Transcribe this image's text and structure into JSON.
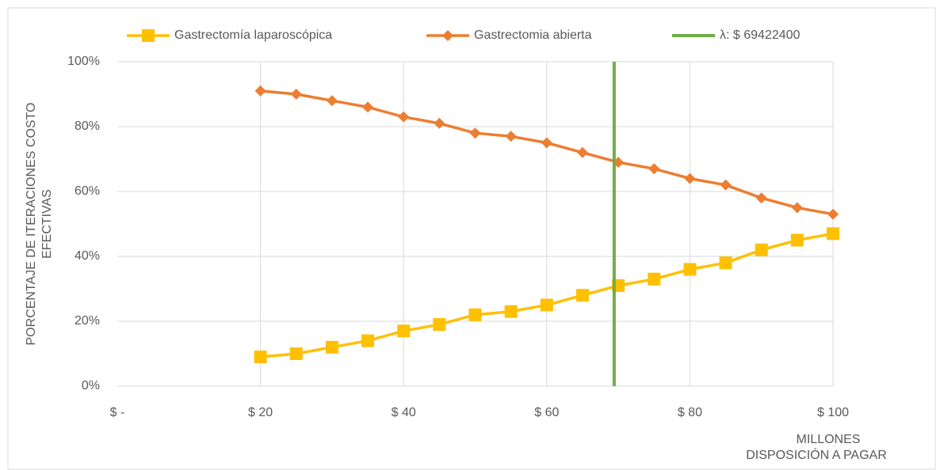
{
  "chart_data": {
    "type": "line",
    "x_label": "DISPOSICIÓN A PAGAR",
    "x_units": "MILLONES",
    "y_label": "PORCENTAJE DE ITERACIONES COSTO EFECTIVAS",
    "x": [
      20,
      25,
      30,
      35,
      40,
      45,
      50,
      55,
      60,
      65,
      70,
      75,
      80,
      85,
      90,
      95,
      100
    ],
    "series": [
      {
        "name": "Gastrectomía laparoscópica",
        "color": "#FFC000",
        "marker": "square",
        "values": [
          9,
          10,
          12,
          14,
          17,
          19,
          22,
          23,
          25,
          28,
          31,
          33,
          36,
          38,
          42,
          45,
          47
        ]
      },
      {
        "name": "Gastrectomia abierta",
        "color": "#ED7D31",
        "marker": "diamond",
        "values": [
          91,
          90,
          88,
          86,
          83,
          81,
          78,
          77,
          75,
          72,
          69,
          67,
          64,
          62,
          58,
          55,
          53
        ]
      },
      {
        "name": "λ: $ 69422400",
        "color": "#70AD47",
        "marker": "none",
        "x": [
          69.4224,
          69.4224
        ],
        "values": [
          0,
          100
        ]
      }
    ],
    "xlim": [
      0,
      100
    ],
    "xticks": [
      {
        "value": 0,
        "label": "$ -"
      },
      {
        "value": 20,
        "label": "$ 20"
      },
      {
        "value": 40,
        "label": "$ 40"
      },
      {
        "value": 60,
        "label": "$ 60"
      },
      {
        "value": 80,
        "label": "$ 80"
      },
      {
        "value": 100,
        "label": "$ 100"
      }
    ],
    "ylim": [
      0,
      100
    ],
    "yticks": [
      {
        "value": 0,
        "label": "0%"
      },
      {
        "value": 20,
        "label": "20%"
      },
      {
        "value": 40,
        "label": "40%"
      },
      {
        "value": 60,
        "label": "60%"
      },
      {
        "value": 80,
        "label": "80%"
      },
      {
        "value": 100,
        "label": "100%"
      }
    ],
    "grid": true,
    "legend": "top"
  }
}
